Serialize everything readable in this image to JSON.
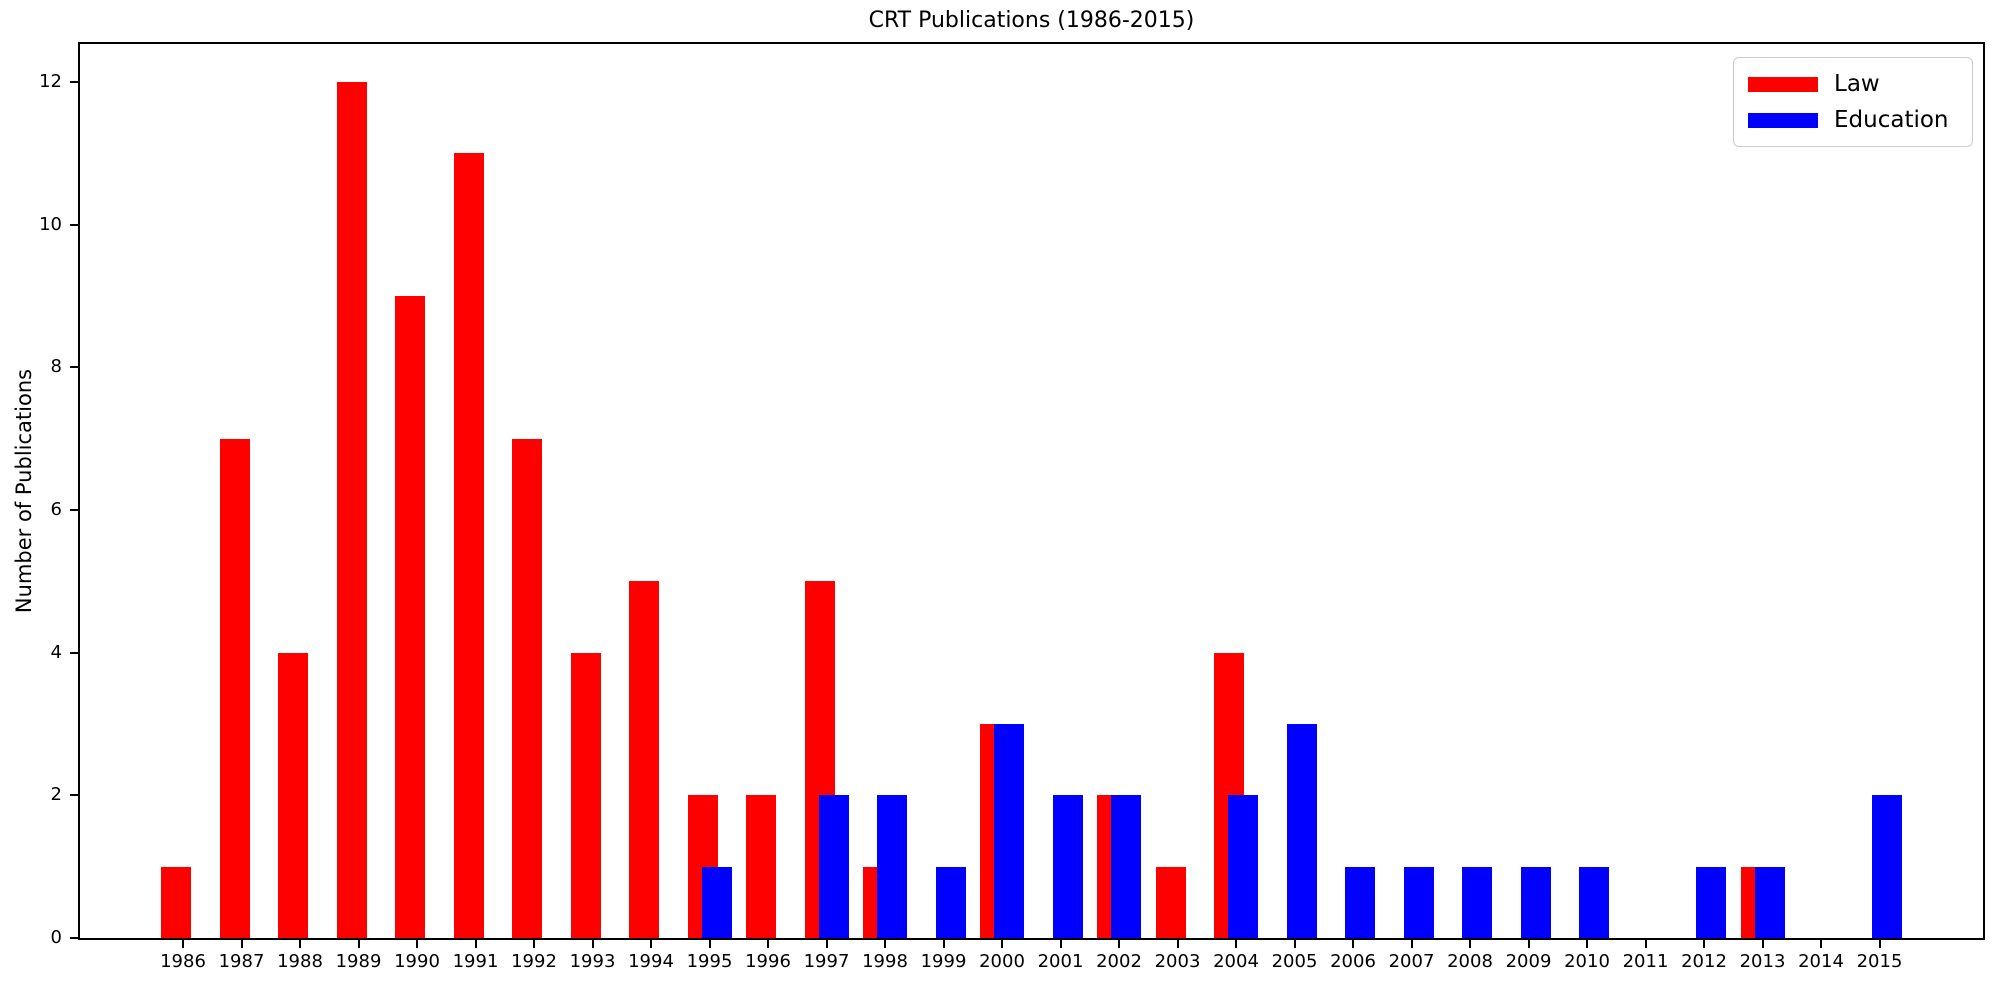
{
  "title": "CRT Publications (1986-2015)",
  "ylabel": "Number of Publications",
  "legend": {
    "items": [
      {
        "label": "Law",
        "color": "#ff0000"
      },
      {
        "label": "Education",
        "color": "#0000ff"
      }
    ]
  },
  "chart_data": {
    "type": "bar",
    "title": "CRT Publications (1986-2015)",
    "xlabel": "",
    "ylabel": "Number of Publications",
    "categories": [
      "1986",
      "1987",
      "1988",
      "1989",
      "1990",
      "1991",
      "1992",
      "1993",
      "1994",
      "1995",
      "1996",
      "1997",
      "1998",
      "1999",
      "2000",
      "2001",
      "2002",
      "2003",
      "2004",
      "2005",
      "2006",
      "2007",
      "2008",
      "2009",
      "2010",
      "2011",
      "2012",
      "2013",
      "2014",
      "2015"
    ],
    "series": [
      {
        "name": "Law",
        "color": "#ff0000",
        "values": [
          1,
          7,
          4,
          12,
          9,
          11,
          7,
          4,
          5,
          2,
          2,
          5,
          1,
          0,
          3,
          0,
          2,
          1,
          4,
          0,
          0,
          0,
          0,
          0,
          0,
          0,
          0,
          1,
          0,
          0
        ]
      },
      {
        "name": "Education",
        "color": "#0000ff",
        "values": [
          0,
          0,
          0,
          0,
          0,
          0,
          0,
          0,
          0,
          1,
          0,
          2,
          2,
          1,
          3,
          2,
          2,
          0,
          2,
          3,
          1,
          1,
          1,
          1,
          1,
          0,
          1,
          1,
          0,
          2
        ]
      }
    ],
    "ylim": [
      0,
      12.56
    ],
    "yticks": [
      0,
      2,
      4,
      6,
      8,
      10,
      12
    ],
    "grid": false,
    "legend_position": "upper right",
    "background": "#ffffff"
  }
}
